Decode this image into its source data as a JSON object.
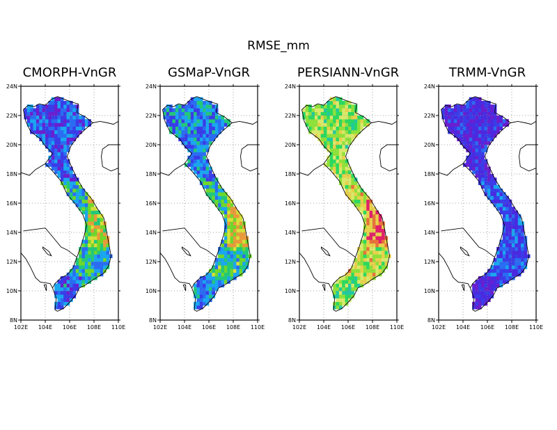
{
  "figure": {
    "title": "RMSE_mm",
    "x_ticks": [
      "102E",
      "104E",
      "106E",
      "108E",
      "110E"
    ],
    "y_ticks": [
      "8N",
      "10N",
      "12N",
      "14N",
      "16N",
      "18N",
      "20N",
      "22N",
      "24N"
    ],
    "lon_range": [
      102,
      110
    ],
    "lat_range": [
      8,
      24
    ],
    "grid": "dotted",
    "panels": [
      {
        "title": "CMORPH-VnGR",
        "palette": [
          "#6a1ecf",
          "#3a3ce8",
          "#2a6cf2",
          "#1aa6f0",
          "#22c87a",
          "#6fd82a",
          "#d8e03a",
          "#e89a3a"
        ],
        "north_level": 0.25,
        "south_level": 0.5,
        "coast_hot": true
      },
      {
        "title": "GSMaP-VnGR",
        "palette": [
          "#6a1ecf",
          "#3a3ce8",
          "#2a6cf2",
          "#1aa6f0",
          "#22c87a",
          "#6fd82a",
          "#d8e03a",
          "#e89a3a"
        ],
        "north_level": 0.35,
        "south_level": 0.55,
        "coast_hot": true
      },
      {
        "title": "PERSIANN-VnGR",
        "palette": [
          "#1aa6f0",
          "#22c8a0",
          "#2ad860",
          "#8fe03a",
          "#d8e86a",
          "#e8d04a",
          "#e8703a",
          "#e0206a"
        ],
        "north_level": 0.45,
        "south_level": 0.55,
        "coast_hot": true
      },
      {
        "title": "TRMM-VnGR",
        "palette": [
          "#6a1ecf",
          "#4a2ae0",
          "#3a3ce8",
          "#2a6cf2",
          "#1aa6f0",
          "#22c87a",
          "#6fd82a",
          "#d8e03a"
        ],
        "north_level": 0.2,
        "south_level": 0.35,
        "coast_hot": false
      }
    ]
  }
}
